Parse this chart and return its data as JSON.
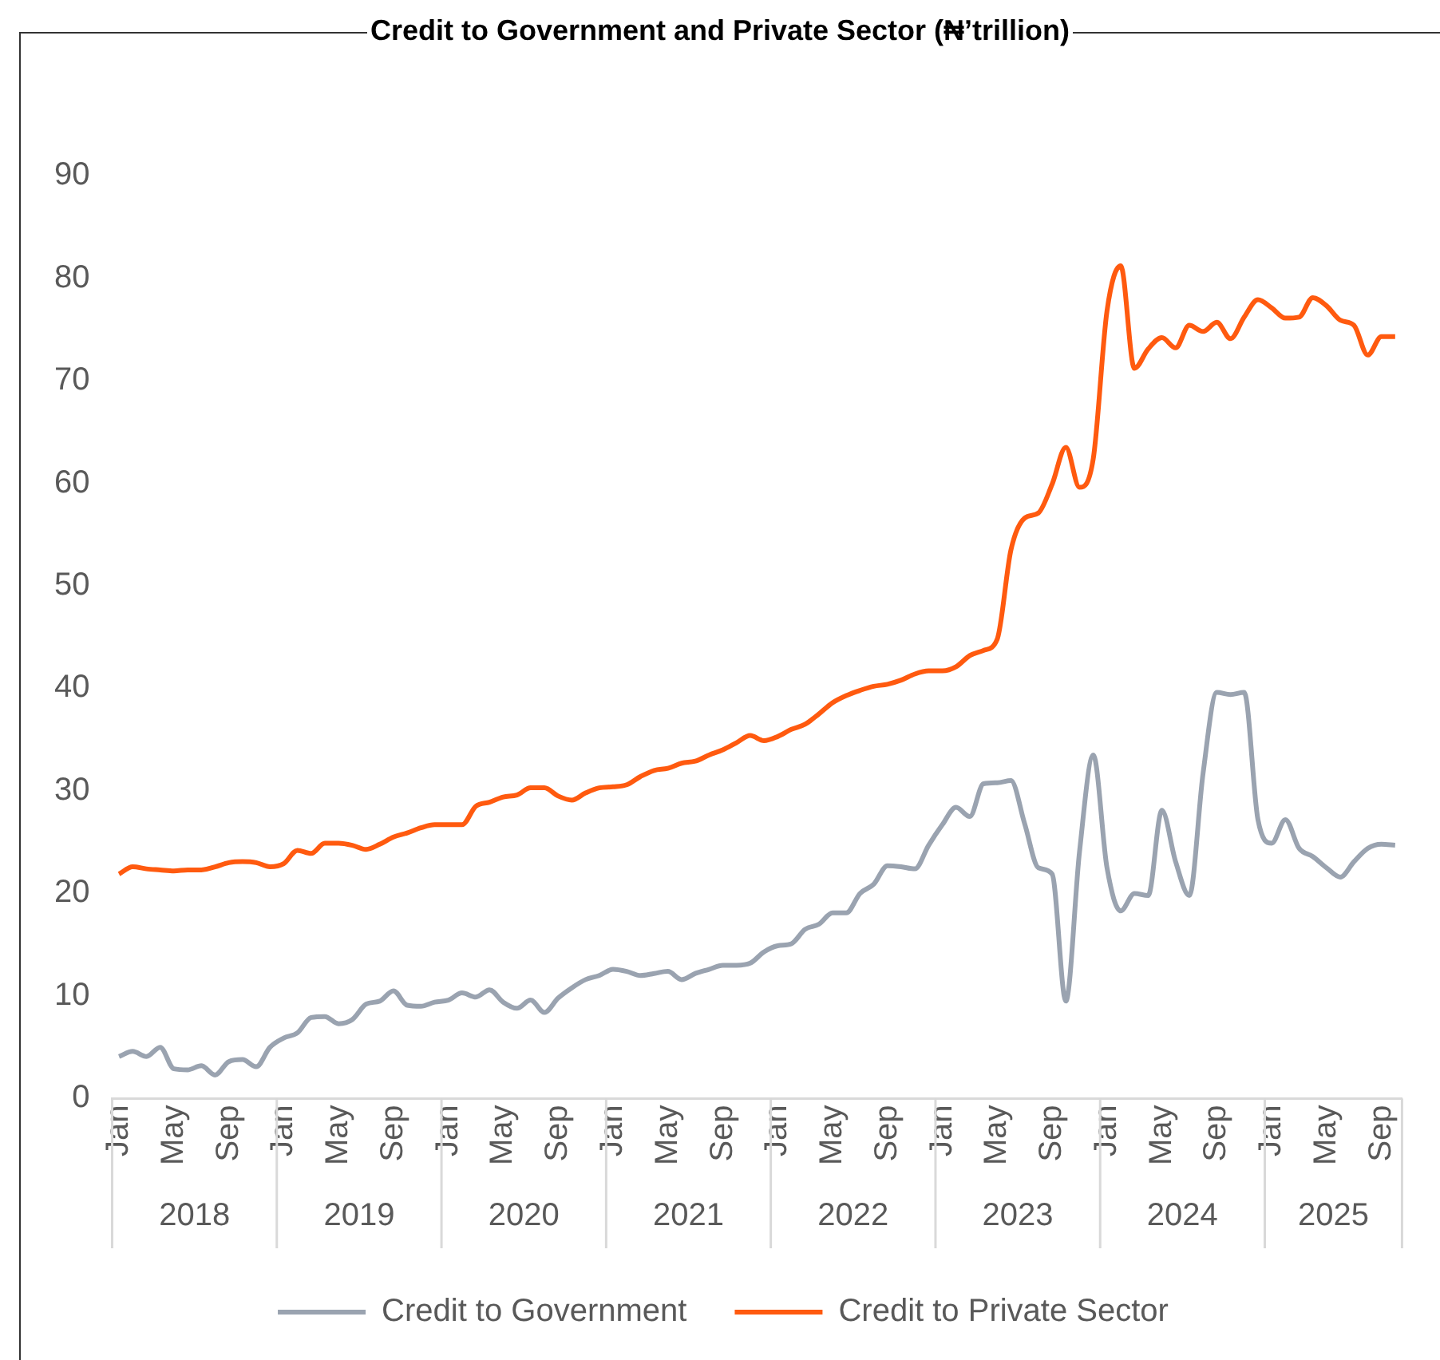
{
  "chart_data": {
    "type": "line",
    "title": "Credit to Government and Private Sector (₦’trillion)",
    "categories": [
      "Jan",
      null,
      null,
      null,
      "May",
      null,
      null,
      null,
      "Sep",
      null,
      null,
      null,
      "Jan",
      null,
      null,
      null,
      "May",
      null,
      null,
      null,
      "Sep",
      null,
      null,
      null,
      "Jan",
      null,
      null,
      null,
      "May",
      null,
      null,
      null,
      "Sep",
      null,
      null,
      null,
      "Jan",
      null,
      null,
      null,
      "May",
      null,
      null,
      null,
      "Sep",
      null,
      null,
      null,
      "Jan",
      null,
      null,
      null,
      "May",
      null,
      null,
      null,
      "Sep",
      null,
      null,
      null,
      "Jan",
      null,
      null,
      null,
      "May",
      null,
      null,
      null,
      "Sep",
      null,
      null,
      null,
      "Jan",
      null,
      null,
      null,
      "May",
      null,
      null,
      null,
      "Sep",
      null,
      null,
      null,
      "Jan",
      null,
      null,
      null,
      "May",
      null,
      null,
      null,
      "Sep",
      null
    ],
    "series": [
      {
        "name": "Credit to Government",
        "color": "#9aa3b0",
        "values": [
          4.1,
          4.6,
          4.1,
          5.0,
          2.9,
          2.8,
          3.2,
          2.3,
          3.6,
          3.8,
          3.1,
          5.0,
          5.9,
          6.4,
          7.9,
          8.0,
          7.3,
          7.7,
          9.2,
          9.5,
          10.5,
          9.1,
          9.0,
          9.4,
          9.6,
          10.3,
          9.9,
          10.6,
          9.4,
          8.8,
          9.6,
          8.4,
          9.8,
          10.8,
          11.6,
          12.0,
          12.6,
          12.4,
          12.0,
          12.2,
          12.4,
          11.6,
          12.2,
          12.6,
          13.0,
          13.0,
          13.2,
          14.3,
          14.9,
          15.1,
          16.5,
          17.0,
          18.1,
          18.1,
          20.0,
          20.9,
          22.7,
          22.6,
          22.4,
          24.7,
          26.7,
          28.4,
          27.5,
          30.7,
          30.8,
          31.0,
          26.8,
          22.5,
          21.9,
          9.5,
          24.1,
          33.5,
          22.5,
          18.3,
          20.0,
          19.8,
          28.1,
          23.1,
          19.8,
          31.7,
          39.6,
          39.4,
          39.6,
          27.2,
          24.9,
          27.2,
          24.4,
          23.6,
          22.5,
          21.6,
          23.1,
          24.4,
          24.8,
          24.7
        ]
      },
      {
        "name": "Credit to Private Sector",
        "color": "#ff5a0f",
        "values": [
          21.9,
          22.6,
          22.4,
          22.3,
          22.2,
          22.3,
          22.3,
          22.6,
          23.0,
          23.1,
          23.0,
          22.6,
          22.9,
          24.2,
          23.9,
          24.9,
          24.9,
          24.7,
          24.3,
          24.8,
          25.5,
          25.9,
          26.4,
          26.7,
          26.7,
          26.7,
          28.5,
          28.9,
          29.4,
          29.6,
          30.3,
          30.3,
          29.5,
          29.1,
          29.8,
          30.3,
          30.4,
          30.6,
          31.4,
          32.0,
          32.2,
          32.7,
          32.9,
          33.5,
          34.0,
          34.7,
          35.4,
          34.9,
          35.3,
          36.0,
          36.5,
          37.5,
          38.6,
          39.3,
          39.8,
          40.2,
          40.4,
          40.8,
          41.4,
          41.7,
          41.7,
          42.1,
          43.2,
          43.7,
          44.8,
          53.5,
          56.6,
          57.1,
          59.9,
          63.5,
          59.6,
          62.4,
          76.8,
          81.2,
          71.2,
          73.1,
          74.2,
          73.2,
          75.4,
          74.8,
          75.7,
          74.1,
          76.2,
          77.9,
          77.1,
          76.1,
          76.2,
          78.1,
          77.3,
          75.9,
          75.4,
          72.5,
          74.3,
          74.3
        ]
      }
    ],
    "ylim": [
      0,
      90
    ],
    "yticks": [
      0,
      10,
      20,
      30,
      40,
      50,
      60,
      70,
      80,
      90
    ],
    "grid": false,
    "legend": "bottom",
    "marker": "none",
    "line_style": "solid",
    "annotations": [
      "2018",
      "2019",
      "2020",
      "2021",
      "2022",
      "2023",
      "2024",
      "2025"
    ]
  }
}
